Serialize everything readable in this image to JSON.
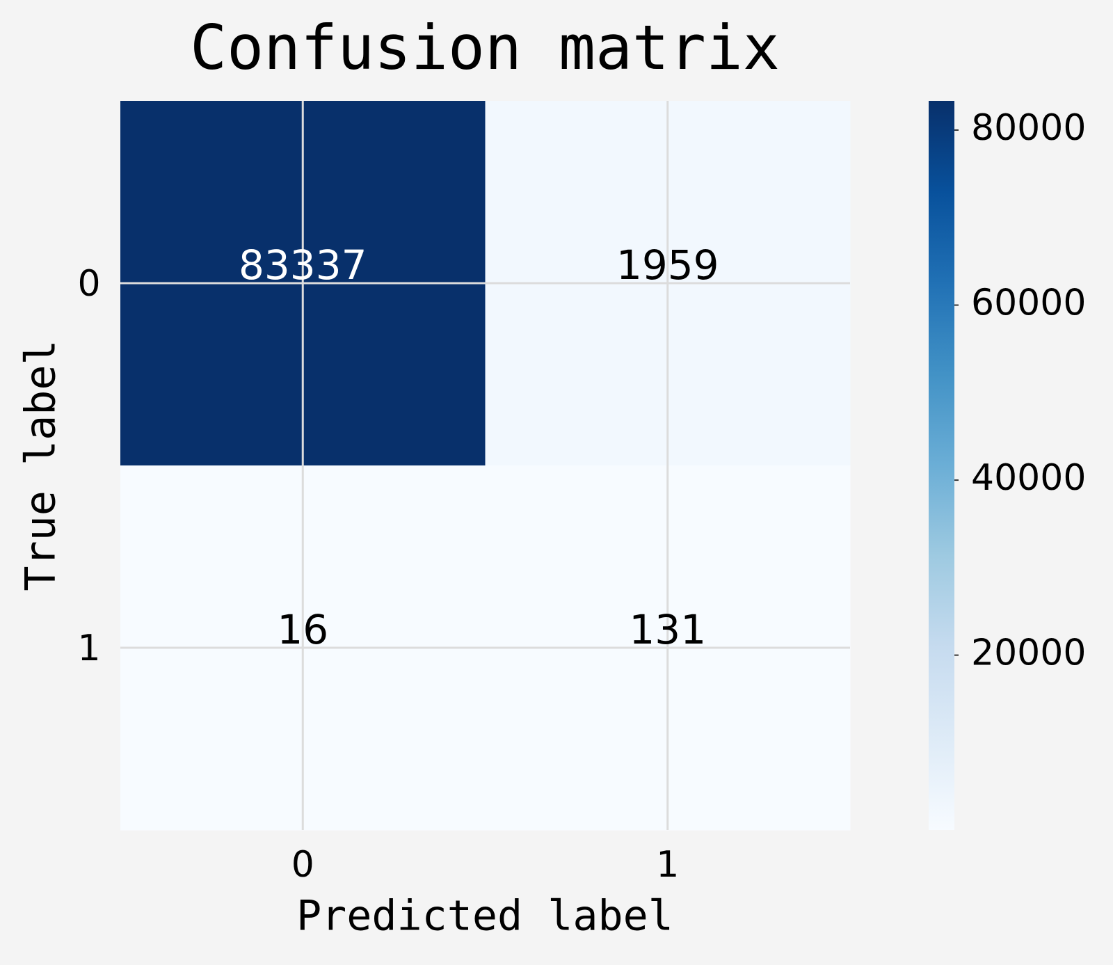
{
  "chart_data": {
    "type": "heatmap",
    "title": "Confusion matrix",
    "xlabel": "Predicted label",
    "ylabel": "True label",
    "x_categories": [
      "0",
      "1"
    ],
    "y_categories": [
      "0",
      "1"
    ],
    "values": [
      [
        83337,
        1959
      ],
      [
        16,
        131
      ]
    ],
    "colormap": [
      "#f7fbff",
      "#deebf7",
      "#c6dbef",
      "#9ecae1",
      "#6baed6",
      "#4292c6",
      "#2171b5",
      "#08519c",
      "#08306b"
    ],
    "clim": [
      16,
      83337
    ],
    "cticks": [
      20000,
      40000,
      60000,
      80000
    ],
    "grid": true
  }
}
